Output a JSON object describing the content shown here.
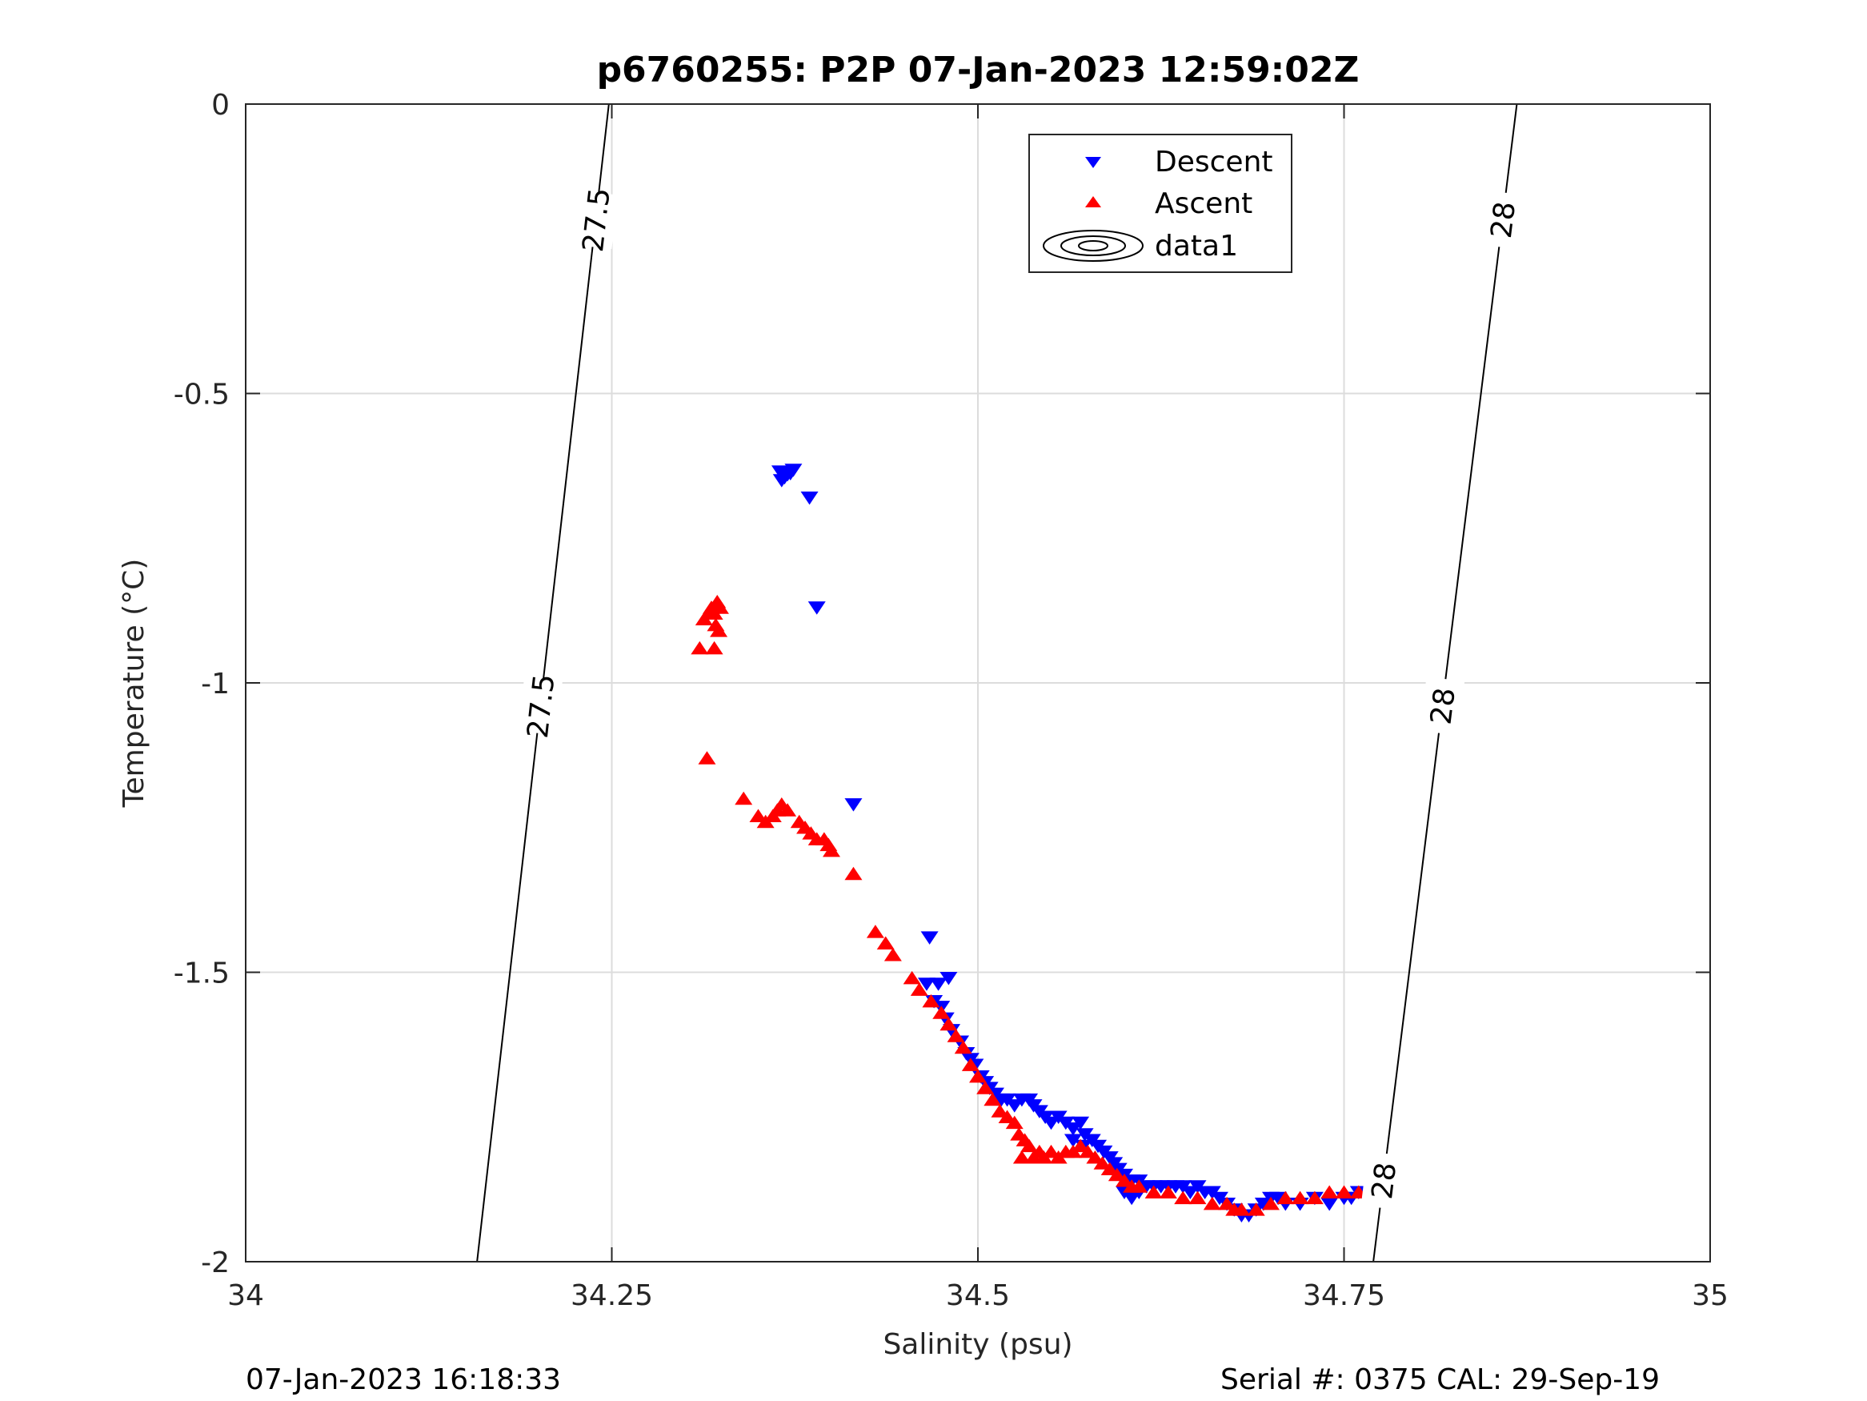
{
  "chart_data": {
    "type": "scatter",
    "title": "p6760255: P2P 07-Jan-2023 12:59:02Z",
    "xlabel": "Salinity (psu)",
    "ylabel": "Temperature (°C)",
    "xlim": [
      34,
      35
    ],
    "ylim": [
      -2,
      0
    ],
    "x_ticks": [
      34,
      34.25,
      34.5,
      34.75,
      35
    ],
    "x_tick_labels": [
      "34",
      "34.25",
      "34.5",
      "34.75",
      "35"
    ],
    "y_ticks": [
      0,
      -0.5,
      -1,
      -1.5,
      -2
    ],
    "y_tick_labels": [
      "0",
      "-0.5",
      "-1",
      "-1.5",
      "-2"
    ],
    "grid": true,
    "legend_position": "top-center",
    "legend": [
      {
        "label": "Descent",
        "marker": "triangle-down",
        "color": "#0000ff"
      },
      {
        "label": "Ascent",
        "marker": "triangle-up",
        "color": "#ff0000"
      },
      {
        "label": "data1",
        "marker": "contour",
        "color": "#000000"
      }
    ],
    "series": [
      {
        "name": "Descent",
        "marker": "triangle-down",
        "color": "#0000ff",
        "points": [
          [
            34.365,
            -0.635
          ],
          [
            34.37,
            -0.64
          ],
          [
            34.368,
            -0.645
          ],
          [
            34.372,
            -0.638
          ],
          [
            34.374,
            -0.632
          ],
          [
            34.366,
            -0.65
          ],
          [
            34.385,
            -0.68
          ],
          [
            34.39,
            -0.87
          ],
          [
            34.415,
            -1.21
          ],
          [
            34.467,
            -1.44
          ],
          [
            34.465,
            -1.52
          ],
          [
            34.473,
            -1.52
          ],
          [
            34.48,
            -1.51
          ],
          [
            34.47,
            -1.55
          ],
          [
            34.475,
            -1.56
          ],
          [
            34.478,
            -1.58
          ],
          [
            34.482,
            -1.6
          ],
          [
            34.488,
            -1.62
          ],
          [
            34.492,
            -1.64
          ],
          [
            34.495,
            -1.65
          ],
          [
            34.498,
            -1.66
          ],
          [
            34.502,
            -1.68
          ],
          [
            34.505,
            -1.69
          ],
          [
            34.508,
            -1.7
          ],
          [
            34.512,
            -1.71
          ],
          [
            34.516,
            -1.72
          ],
          [
            34.52,
            -1.72
          ],
          [
            34.525,
            -1.73
          ],
          [
            34.53,
            -1.72
          ],
          [
            34.535,
            -1.72
          ],
          [
            34.538,
            -1.73
          ],
          [
            34.542,
            -1.74
          ],
          [
            34.546,
            -1.75
          ],
          [
            34.55,
            -1.76
          ],
          [
            34.555,
            -1.75
          ],
          [
            34.56,
            -1.76
          ],
          [
            34.565,
            -1.77
          ],
          [
            34.57,
            -1.76
          ],
          [
            34.573,
            -1.78
          ],
          [
            34.565,
            -1.79
          ],
          [
            34.572,
            -1.8
          ],
          [
            34.578,
            -1.79
          ],
          [
            34.582,
            -1.8
          ],
          [
            34.586,
            -1.81
          ],
          [
            34.59,
            -1.82
          ],
          [
            34.593,
            -1.83
          ],
          [
            34.596,
            -1.84
          ],
          [
            34.6,
            -1.85
          ],
          [
            34.605,
            -1.86
          ],
          [
            34.61,
            -1.86
          ],
          [
            34.615,
            -1.87
          ],
          [
            34.62,
            -1.87
          ],
          [
            34.6,
            -1.88
          ],
          [
            34.605,
            -1.89
          ],
          [
            34.61,
            -1.88
          ],
          [
            34.625,
            -1.87
          ],
          [
            34.63,
            -1.87
          ],
          [
            34.635,
            -1.87
          ],
          [
            34.64,
            -1.87
          ],
          [
            34.645,
            -1.88
          ],
          [
            34.65,
            -1.87
          ],
          [
            34.655,
            -1.88
          ],
          [
            34.66,
            -1.88
          ],
          [
            34.665,
            -1.89
          ],
          [
            34.67,
            -1.9
          ],
          [
            34.675,
            -1.91
          ],
          [
            34.68,
            -1.92
          ],
          [
            34.685,
            -1.92
          ],
          [
            34.69,
            -1.91
          ],
          [
            34.695,
            -1.9
          ],
          [
            34.7,
            -1.89
          ],
          [
            34.705,
            -1.89
          ],
          [
            34.71,
            -1.9
          ],
          [
            34.72,
            -1.9
          ],
          [
            34.73,
            -1.89
          ],
          [
            34.74,
            -1.9
          ],
          [
            34.75,
            -1.89
          ],
          [
            34.755,
            -1.89
          ],
          [
            34.76,
            -1.88
          ],
          [
            34.765,
            -1.89
          ],
          [
            34.77,
            -1.89
          ]
        ]
      },
      {
        "name": "Ascent",
        "marker": "triangle-up",
        "color": "#ff0000",
        "points": [
          [
            34.31,
            -0.94
          ],
          [
            34.313,
            -0.89
          ],
          [
            34.316,
            -0.88
          ],
          [
            34.318,
            -0.87
          ],
          [
            34.32,
            -0.88
          ],
          [
            34.322,
            -0.86
          ],
          [
            34.324,
            -0.87
          ],
          [
            34.321,
            -0.9
          ],
          [
            34.323,
            -0.91
          ],
          [
            34.32,
            -0.94
          ],
          [
            34.315,
            -1.13
          ],
          [
            34.34,
            -1.2
          ],
          [
            34.35,
            -1.23
          ],
          [
            34.355,
            -1.24
          ],
          [
            34.36,
            -1.23
          ],
          [
            34.363,
            -1.22
          ],
          [
            34.366,
            -1.21
          ],
          [
            34.37,
            -1.22
          ],
          [
            34.378,
            -1.24
          ],
          [
            34.382,
            -1.25
          ],
          [
            34.386,
            -1.26
          ],
          [
            34.39,
            -1.27
          ],
          [
            34.395,
            -1.27
          ],
          [
            34.398,
            -1.28
          ],
          [
            34.4,
            -1.29
          ],
          [
            34.415,
            -1.33
          ],
          [
            34.43,
            -1.43
          ],
          [
            34.437,
            -1.45
          ],
          [
            34.442,
            -1.47
          ],
          [
            34.455,
            -1.51
          ],
          [
            34.46,
            -1.53
          ],
          [
            34.468,
            -1.55
          ],
          [
            34.475,
            -1.57
          ],
          [
            34.48,
            -1.59
          ],
          [
            34.485,
            -1.61
          ],
          [
            34.49,
            -1.63
          ],
          [
            34.495,
            -1.66
          ],
          [
            34.5,
            -1.68
          ],
          [
            34.505,
            -1.7
          ],
          [
            34.51,
            -1.72
          ],
          [
            34.515,
            -1.74
          ],
          [
            34.52,
            -1.75
          ],
          [
            34.525,
            -1.76
          ],
          [
            34.528,
            -1.78
          ],
          [
            34.532,
            -1.79
          ],
          [
            34.535,
            -1.8
          ],
          [
            34.53,
            -1.82
          ],
          [
            34.538,
            -1.82
          ],
          [
            34.542,
            -1.81
          ],
          [
            34.545,
            -1.82
          ],
          [
            34.55,
            -1.81
          ],
          [
            34.555,
            -1.82
          ],
          [
            34.56,
            -1.81
          ],
          [
            34.565,
            -1.81
          ],
          [
            34.57,
            -1.8
          ],
          [
            34.575,
            -1.81
          ],
          [
            34.58,
            -1.82
          ],
          [
            34.585,
            -1.83
          ],
          [
            34.59,
            -1.84
          ],
          [
            34.595,
            -1.85
          ],
          [
            34.6,
            -1.86
          ],
          [
            34.605,
            -1.87
          ],
          [
            34.61,
            -1.87
          ],
          [
            34.62,
            -1.88
          ],
          [
            34.63,
            -1.88
          ],
          [
            34.64,
            -1.89
          ],
          [
            34.65,
            -1.89
          ],
          [
            34.66,
            -1.9
          ],
          [
            34.67,
            -1.9
          ],
          [
            34.675,
            -1.91
          ],
          [
            34.68,
            -1.91
          ],
          [
            34.69,
            -1.91
          ],
          [
            34.7,
            -1.9
          ],
          [
            34.71,
            -1.89
          ],
          [
            34.72,
            -1.89
          ],
          [
            34.73,
            -1.89
          ],
          [
            34.74,
            -1.88
          ],
          [
            34.75,
            -1.88
          ],
          [
            34.76,
            -1.88
          ],
          [
            34.77,
            -1.87
          ],
          [
            34.775,
            -1.88
          ]
        ]
      },
      {
        "name": "data1",
        "type": "contour",
        "color": "#000000",
        "lines": [
          {
            "label": "27.5",
            "points": [
              [
                34.158,
                -2
              ],
              [
                34.248,
                0
              ]
            ],
            "label_at": [
              -1.04,
              -0.2
            ]
          },
          {
            "label": "28",
            "points": [
              [
                34.77,
                -2
              ],
              [
                34.868,
                0
              ]
            ],
            "label_at": [
              -1.86,
              -1.04,
              -0.2
            ]
          }
        ]
      }
    ]
  },
  "footer": {
    "left": "07-Jan-2023 16:18:33",
    "right": "Serial #: 0375  CAL: 29-Sep-19"
  }
}
